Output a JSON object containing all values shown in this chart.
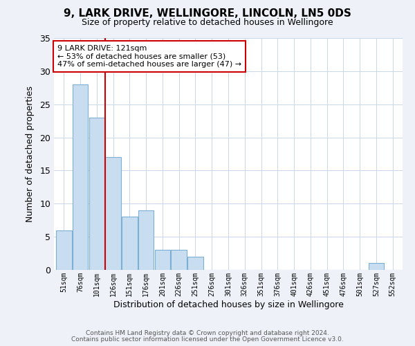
{
  "title": "9, LARK DRIVE, WELLINGORE, LINCOLN, LN5 0DS",
  "subtitle": "Size of property relative to detached houses in Wellingore",
  "xlabel": "Distribution of detached houses by size in Wellingore",
  "ylabel": "Number of detached properties",
  "bins": [
    "51sqm",
    "76sqm",
    "101sqm",
    "126sqm",
    "151sqm",
    "176sqm",
    "201sqm",
    "226sqm",
    "251sqm",
    "276sqm",
    "301sqm",
    "326sqm",
    "351sqm",
    "376sqm",
    "401sqm",
    "426sqm",
    "451sqm",
    "476sqm",
    "501sqm",
    "527sqm",
    "552sqm"
  ],
  "values": [
    6,
    28,
    23,
    17,
    8,
    9,
    3,
    3,
    2,
    0,
    0,
    0,
    0,
    0,
    0,
    0,
    0,
    0,
    0,
    1,
    0
  ],
  "bar_color": "#c9ddf0",
  "bar_edge_color": "#7bafd4",
  "marker_label": "9 LARK DRIVE: 121sqm",
  "annotation_line1": "← 53% of detached houses are smaller (53)",
  "annotation_line2": "47% of semi-detached houses are larger (47) →",
  "marker_color": "#cc0000",
  "annotation_box_color": "#cc0000",
  "ylim": [
    0,
    35
  ],
  "yticks": [
    0,
    5,
    10,
    15,
    20,
    25,
    30,
    35
  ],
  "footer1": "Contains HM Land Registry data © Crown copyright and database right 2024.",
  "footer2": "Contains public sector information licensed under the Open Government Licence v3.0.",
  "bg_color": "#eef2f8",
  "plot_bg_color": "#ffffff"
}
